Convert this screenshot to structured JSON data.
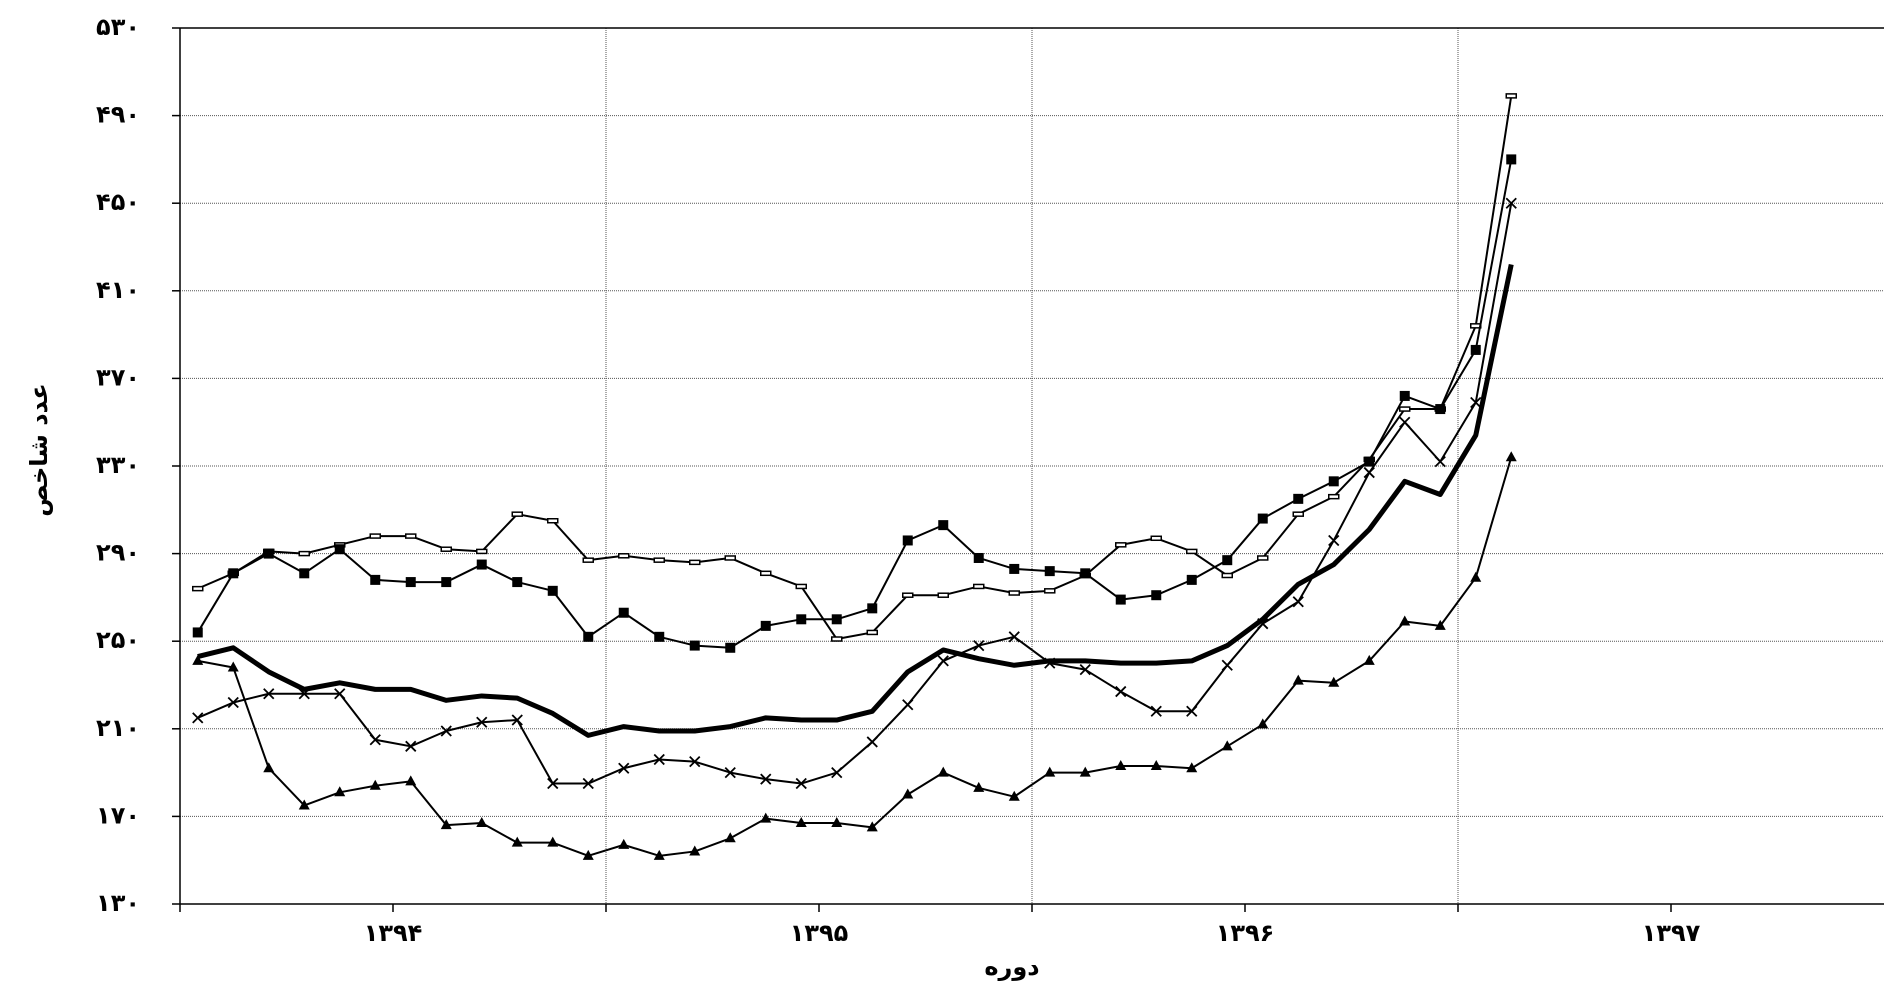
{
  "chart_data": {
    "type": "line",
    "y_label": "عدد شاخص",
    "x_label": "دوره",
    "x": [
      0.5,
      1.5,
      2.5,
      3.5,
      4.5,
      5.5,
      6.5,
      7.5,
      8.5,
      9.5,
      10.5,
      11.5,
      12.5,
      13.5,
      14.5,
      15.5,
      16.5,
      17.5,
      18.5,
      19.5,
      20.5,
      21.5,
      22.5,
      23.5,
      24.5,
      25.5,
      26.5,
      27.5,
      28.5,
      29.5,
      30.5,
      31.5,
      32.5,
      33.5,
      34.5,
      35.5,
      36.5,
      37.5
    ],
    "xlim": [
      0,
      48
    ],
    "xticks": [
      {
        "value": 6,
        "label": "۱۳۹۴"
      },
      {
        "value": 18,
        "label": "۱۳۹۵"
      },
      {
        "value": 30,
        "label": "۱۳۹۶"
      },
      {
        "value": 42,
        "label": "۱۳۹۷"
      }
    ],
    "xgrid": [
      12,
      24,
      36
    ],
    "ylim": [
      130,
      530
    ],
    "yticks": [
      {
        "value": 130,
        "label": "۱۳۰"
      },
      {
        "value": 170,
        "label": "۱۷۰"
      },
      {
        "value": 210,
        "label": "۲۱۰"
      },
      {
        "value": 250,
        "label": "۲۵۰"
      },
      {
        "value": 290,
        "label": "۲۹۰"
      },
      {
        "value": 330,
        "label": "۳۳۰"
      },
      {
        "value": 370,
        "label": "۳۷۰"
      },
      {
        "value": 410,
        "label": "۴۱۰"
      },
      {
        "value": 450,
        "label": "۴۵۰"
      },
      {
        "value": 490,
        "label": "۴۹۰"
      },
      {
        "value": 530,
        "label": "۵۳۰"
      }
    ],
    "grid": true,
    "series": [
      {
        "color": "#000000",
        "marker": "dash",
        "width": 2,
        "values": [
          274,
          281,
          291,
          290,
          294,
          298,
          298,
          292,
          291,
          308,
          305,
          287,
          289,
          287,
          286,
          288,
          281,
          275,
          251,
          254,
          271,
          271,
          275,
          272,
          273,
          280,
          294,
          297,
          291,
          280,
          288,
          308,
          316,
          333,
          356,
          356,
          394,
          499
        ]
      },
      {
        "color": "#000000",
        "marker": "square",
        "width": 2,
        "values": [
          254,
          281,
          290,
          281,
          292,
          278,
          277,
          277,
          285,
          277,
          273,
          252,
          263,
          252,
          248,
          247,
          257,
          260,
          260,
          265,
          296,
          303,
          288,
          283,
          282,
          281,
          269,
          271,
          278,
          287,
          306,
          315,
          323,
          332,
          362,
          356,
          383,
          470
        ]
      },
      {
        "color": "#000000",
        "marker": "x",
        "width": 2,
        "values": [
          215,
          222,
          226,
          226,
          226,
          205,
          202,
          209,
          213,
          214,
          185,
          185,
          192,
          196,
          195,
          190,
          187,
          185,
          190,
          204,
          221,
          241,
          248,
          252,
          240,
          237,
          227,
          218,
          218,
          239,
          258,
          268,
          296,
          327,
          350,
          332,
          359,
          450
        ]
      },
      {
        "color": "#000000",
        "marker": "none",
        "width": 5,
        "values": [
          243,
          247,
          236,
          228,
          231,
          228,
          228,
          223,
          225,
          224,
          217,
          207,
          211,
          209,
          209,
          211,
          215,
          214,
          214,
          218,
          236,
          246,
          242,
          239,
          241,
          241,
          240,
          240,
          241,
          248,
          260,
          276,
          285,
          301,
          323,
          317,
          344,
          422
        ]
      },
      {
        "color": "#000000",
        "marker": "triangle",
        "width": 2,
        "values": [
          241,
          238,
          192,
          175,
          181,
          184,
          186,
          166,
          167,
          158,
          158,
          152,
          157,
          152,
          154,
          160,
          169,
          167,
          167,
          165,
          180,
          190,
          183,
          179,
          190,
          190,
          193,
          193,
          192,
          202,
          212,
          232,
          231,
          241,
          259,
          257,
          279,
          334
        ]
      }
    ]
  }
}
